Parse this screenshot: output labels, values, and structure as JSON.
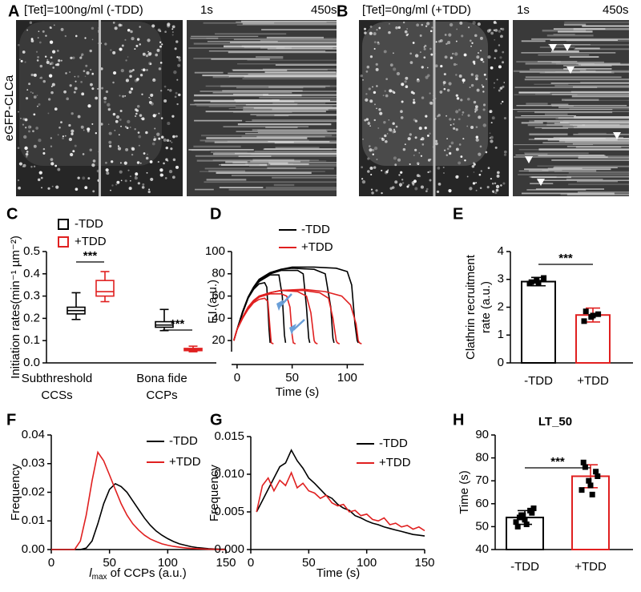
{
  "images": [
    {
      "panel": "A",
      "condition": "[Tet]=100ng/ml (-TDD)",
      "start": "1s",
      "end": "450s"
    },
    {
      "panel": "B",
      "condition": "[Tet]=0ng/ml (+TDD)",
      "start": "1s",
      "end": "450s"
    }
  ],
  "image_ylabel": "eGFP-CLCa",
  "chart_data": [
    {
      "panel": "C",
      "type": "box",
      "ylabel": "Initiation rates(min⁻¹ µm⁻²)",
      "categories": [
        [
          "Subthreshold",
          "CCSs"
        ],
        [
          "Bona fide",
          "CCPs"
        ]
      ],
      "ylim": [
        0,
        0.5
      ],
      "yticks": [
        {
          "value": 0,
          "label": "0.0"
        },
        0.1,
        0.2,
        0.3,
        0.4,
        0.5
      ],
      "series": [
        {
          "name": "-TDD",
          "color": "#000000",
          "boxes": [
            {
              "min": 0.195,
              "q1": 0.22,
              "median": 0.235,
              "q3": 0.25,
              "max": 0.315
            },
            {
              "min": 0.145,
              "q1": 0.16,
              "median": 0.17,
              "q3": 0.185,
              "max": 0.24
            }
          ]
        },
        {
          "name": "+TDD",
          "color": "#e02020",
          "boxes": [
            {
              "min": 0.275,
              "q1": 0.3,
              "median": 0.32,
              "q3": 0.37,
              "max": 0.41
            },
            {
              "min": 0.05,
              "q1": 0.055,
              "median": 0.06,
              "q3": 0.065,
              "max": 0.075
            }
          ]
        }
      ],
      "annotations": [
        "***",
        "***"
      ]
    },
    {
      "panel": "D",
      "type": "line",
      "xlabel": "Time (s)",
      "ylabel": "F.I.(a.u.)",
      "xlim": [
        -5,
        115
      ],
      "xticks": [
        0,
        50,
        100
      ],
      "ylim": [
        10,
        100
      ],
      "yticks": [
        20,
        40,
        60,
        80,
        100
      ],
      "series": [
        {
          "name": "-TDD",
          "color": "#000000",
          "traces": [
            {
              "x": [
                -3,
                0,
                5,
                10,
                15,
                20,
                25,
                27,
                29,
                30
              ],
              "values": [
                20,
                30,
                45,
                58,
                66,
                71,
                72,
                68,
                30,
                18
              ]
            },
            {
              "x": [
                -3,
                0,
                5,
                10,
                15,
                20,
                30,
                38,
                41,
                43,
                44
              ],
              "values": [
                20,
                30,
                45,
                58,
                67,
                73,
                79,
                79,
                60,
                25,
                18
              ]
            },
            {
              "x": [
                -3,
                0,
                5,
                10,
                15,
                20,
                30,
                40,
                55,
                60,
                63,
                65,
                66
              ],
              "values": [
                20,
                30,
                45,
                58,
                67,
                74,
                80,
                83,
                83,
                80,
                50,
                22,
                18
              ]
            },
            {
              "x": [
                -3,
                0,
                5,
                10,
                15,
                20,
                30,
                40,
                50,
                70,
                80,
                85,
                87,
                88
              ],
              "values": [
                20,
                30,
                46,
                59,
                68,
                75,
                81,
                84,
                85,
                84,
                80,
                50,
                22,
                18
              ]
            },
            {
              "x": [
                -3,
                0,
                5,
                10,
                15,
                20,
                30,
                40,
                50,
                70,
                90,
                100,
                104,
                107,
                109,
                110
              ],
              "values": [
                20,
                30,
                46,
                59,
                68,
                75,
                81,
                84,
                86,
                86,
                85,
                82,
                70,
                35,
                20,
                18
              ]
            }
          ]
        },
        {
          "name": "+TDD",
          "color": "#e02020",
          "traces": [
            {
              "x": [
                -3,
                0,
                5,
                10,
                15,
                20,
                25,
                28,
                30,
                31,
                33
              ],
              "values": [
                20,
                30,
                40,
                48,
                54,
                57,
                58,
                55,
                30,
                18,
                17
              ]
            },
            {
              "x": [
                -3,
                0,
                5,
                10,
                15,
                20,
                30,
                40,
                45,
                48,
                50,
                51,
                53
              ],
              "values": [
                20,
                30,
                40,
                49,
                55,
                59,
                62,
                62,
                60,
                50,
                25,
                18,
                17
              ]
            },
            {
              "x": [
                -3,
                0,
                5,
                10,
                15,
                20,
                30,
                40,
                55,
                63,
                67,
                70,
                71,
                73
              ],
              "values": [
                20,
                30,
                40,
                49,
                55,
                59,
                63,
                65,
                64,
                60,
                45,
                20,
                18,
                17
              ]
            },
            {
              "x": [
                -3,
                0,
                5,
                10,
                15,
                20,
                30,
                40,
                60,
                75,
                83,
                87,
                90,
                91,
                93
              ],
              "values": [
                20,
                30,
                41,
                50,
                56,
                60,
                63,
                65,
                65,
                63,
                58,
                40,
                20,
                18,
                17
              ]
            },
            {
              "x": [
                -3,
                0,
                5,
                10,
                15,
                20,
                30,
                40,
                60,
                80,
                95,
                103,
                108,
                110,
                111,
                113
              ],
              "values": [
                20,
                30,
                41,
                50,
                56,
                60,
                63,
                65,
                66,
                64,
                60,
                52,
                35,
                20,
                18,
                17
              ]
            }
          ]
        }
      ]
    },
    {
      "panel": "E",
      "type": "bar",
      "ylabel": [
        "Clathrin recruitment",
        "rate (a.u.)"
      ],
      "categories": [
        "-TDD",
        "+TDD"
      ],
      "values": [
        2.92,
        1.72
      ],
      "errors": [
        0.15,
        0.25
      ],
      "colors": [
        "#000000",
        "#e02020"
      ],
      "points": [
        [
          2.85,
          2.95,
          3.05,
          2.9,
          2.88
        ],
        [
          1.5,
          1.65,
          1.75,
          1.85,
          1.7
        ]
      ],
      "ylim": [
        0,
        4
      ],
      "yticks": [
        0,
        1,
        2,
        3,
        4
      ],
      "annotation": "***"
    },
    {
      "panel": "F",
      "type": "line",
      "xlabel": [
        "l",
        "max",
        " of CCPs (a.u.)"
      ],
      "ylabel": "Frequency",
      "x": [
        0,
        5,
        10,
        15,
        20,
        25,
        30,
        35,
        40,
        45,
        50,
        55,
        60,
        65,
        70,
        75,
        80,
        85,
        90,
        95,
        100,
        105,
        110,
        115,
        120,
        125,
        130,
        135,
        140,
        145,
        150
      ],
      "series": [
        {
          "name": "-TDD",
          "color": "#000000",
          "values": [
            0,
            0,
            0,
            0,
            0,
            0,
            0.0005,
            0.003,
            0.009,
            0.016,
            0.021,
            0.023,
            0.022,
            0.02,
            0.017,
            0.014,
            0.011,
            0.0085,
            0.0065,
            0.005,
            0.0038,
            0.0028,
            0.002,
            0.0015,
            0.001,
            0.0007,
            0.0005,
            0.0003,
            0.0002,
            0.0001,
            0.0001
          ]
        },
        {
          "name": "+TDD",
          "color": "#e02020",
          "values": [
            0,
            0,
            0,
            0,
            0,
            0.003,
            0.012,
            0.024,
            0.034,
            0.031,
            0.026,
            0.021,
            0.016,
            0.012,
            0.009,
            0.0068,
            0.005,
            0.0037,
            0.0028,
            0.002,
            0.0015,
            0.0011,
            0.0008,
            0.0006,
            0.0004,
            0.0003,
            0.0002,
            0.0001,
            0.0001,
            0,
            0
          ]
        }
      ],
      "xlim": [
        0,
        150
      ],
      "xticks": [
        0,
        50,
        100,
        150
      ],
      "ylim": [
        0,
        0.04
      ],
      "yticks": [
        {
          "value": 0,
          "label": "0.00"
        },
        0.01,
        0.02,
        0.03,
        0.04
      ]
    },
    {
      "panel": "G",
      "type": "line",
      "xlabel": "Time (s)",
      "ylabel": "Frequency",
      "x": [
        5,
        10,
        15,
        20,
        25,
        30,
        35,
        40,
        45,
        50,
        55,
        60,
        65,
        70,
        75,
        80,
        85,
        90,
        95,
        100,
        105,
        110,
        115,
        120,
        125,
        130,
        135,
        140,
        145,
        150
      ],
      "series": [
        {
          "name": "-TDD",
          "color": "#000000",
          "values": [
            0.005,
            0.0065,
            0.008,
            0.0095,
            0.011,
            0.0115,
            0.0132,
            0.0118,
            0.0108,
            0.0095,
            0.0088,
            0.008,
            0.0072,
            0.0068,
            0.006,
            0.0055,
            0.0052,
            0.0045,
            0.0042,
            0.0038,
            0.0035,
            0.0033,
            0.003,
            0.0028,
            0.0026,
            0.0024,
            0.0022,
            0.002,
            0.0019,
            0.0018
          ]
        },
        {
          "name": "+TDD",
          "color": "#e02020",
          "values": [
            0.005,
            0.0085,
            0.0095,
            0.0078,
            0.0092,
            0.0085,
            0.0102,
            0.0082,
            0.0088,
            0.0078,
            0.0075,
            0.0068,
            0.0072,
            0.0062,
            0.0058,
            0.006,
            0.005,
            0.0052,
            0.0045,
            0.0047,
            0.004,
            0.0038,
            0.0042,
            0.0033,
            0.0035,
            0.003,
            0.0032,
            0.0027,
            0.003,
            0.0025
          ]
        }
      ],
      "xlim": [
        0,
        150
      ],
      "xticks": [
        0,
        50,
        100,
        150
      ],
      "ylim": [
        0,
        0.015
      ],
      "yticks": [
        {
          "value": 0,
          "label": "0.000"
        },
        0.005,
        {
          "value": 0.01,
          "label": "0.010"
        },
        0.015
      ]
    },
    {
      "panel": "H",
      "type": "bar",
      "title": "LT_50",
      "ylabel": "Time (s)",
      "categories": [
        "-TDD",
        "+TDD"
      ],
      "values": [
        54,
        72
      ],
      "errors": [
        3,
        5
      ],
      "colors": [
        "#000000",
        "#e02020"
      ],
      "points": [
        [
          52,
          55,
          57,
          50,
          53,
          56,
          54,
          51,
          58,
          55
        ],
        [
          66,
          70,
          74,
          78,
          68,
          72,
          76,
          64
        ]
      ],
      "ylim": [
        40,
        90
      ],
      "yticks": [
        40,
        50,
        60,
        70,
        80,
        90
      ],
      "annotation": "***"
    }
  ]
}
